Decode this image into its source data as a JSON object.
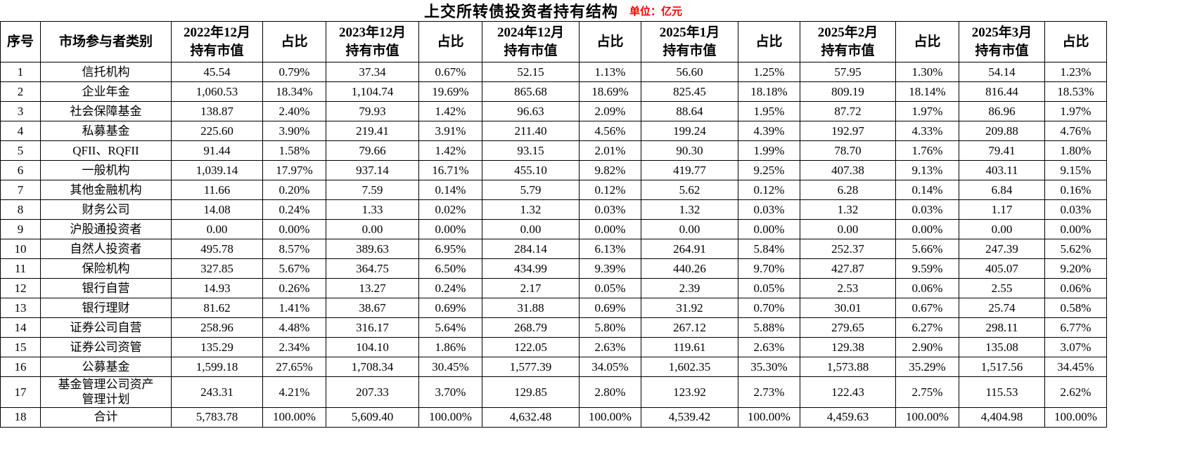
{
  "colors": {
    "background": "#ffffff",
    "title_text": "#000000",
    "unit_text": "#ff0000",
    "grid_line": "#000000",
    "cell_text": "#000000"
  },
  "chart_data": {
    "type": "table",
    "title": "上交所转债投资者持有结构",
    "unit_label": "单位：亿元",
    "columns": [
      "序号",
      "市场参与者类别",
      "2022年12月\n持有市值",
      "占比",
      "2023年12月\n持有市值",
      "占比",
      "2024年12月\n持有市值",
      "占比",
      "2025年1月\n持有市值",
      "占比",
      "2025年2月\n持有市值",
      "占比",
      "2025年3月\n持有市值",
      "占比"
    ],
    "rows": [
      [
        "1",
        "信托机构",
        "45.54",
        "0.79%",
        "37.34",
        "0.67%",
        "52.15",
        "1.13%",
        "56.60",
        "1.25%",
        "57.95",
        "1.30%",
        "54.14",
        "1.23%"
      ],
      [
        "2",
        "企业年金",
        "1,060.53",
        "18.34%",
        "1,104.74",
        "19.69%",
        "865.68",
        "18.69%",
        "825.45",
        "18.18%",
        "809.19",
        "18.14%",
        "816.44",
        "18.53%"
      ],
      [
        "3",
        "社会保障基金",
        "138.87",
        "2.40%",
        "79.93",
        "1.42%",
        "96.63",
        "2.09%",
        "88.64",
        "1.95%",
        "87.72",
        "1.97%",
        "86.96",
        "1.97%"
      ],
      [
        "4",
        "私募基金",
        "225.60",
        "3.90%",
        "219.41",
        "3.91%",
        "211.40",
        "4.56%",
        "199.24",
        "4.39%",
        "192.97",
        "4.33%",
        "209.88",
        "4.76%"
      ],
      [
        "5",
        "QFII、RQFII",
        "91.44",
        "1.58%",
        "79.66",
        "1.42%",
        "93.15",
        "2.01%",
        "90.30",
        "1.99%",
        "78.70",
        "1.76%",
        "79.41",
        "1.80%"
      ],
      [
        "6",
        "一般机构",
        "1,039.14",
        "17.97%",
        "937.14",
        "16.71%",
        "455.10",
        "9.82%",
        "419.77",
        "9.25%",
        "407.38",
        "9.13%",
        "403.11",
        "9.15%"
      ],
      [
        "7",
        "其他金融机构",
        "11.66",
        "0.20%",
        "7.59",
        "0.14%",
        "5.79",
        "0.12%",
        "5.62",
        "0.12%",
        "6.28",
        "0.14%",
        "6.84",
        "0.16%"
      ],
      [
        "8",
        "财务公司",
        "14.08",
        "0.24%",
        "1.33",
        "0.02%",
        "1.32",
        "0.03%",
        "1.32",
        "0.03%",
        "1.32",
        "0.03%",
        "1.17",
        "0.03%"
      ],
      [
        "9",
        "沪股通投资者",
        "0.00",
        "0.00%",
        "0.00",
        "0.00%",
        "0.00",
        "0.00%",
        "0.00",
        "0.00%",
        "0.00",
        "0.00%",
        "0.00",
        "0.00%"
      ],
      [
        "10",
        "自然人投资者",
        "495.78",
        "8.57%",
        "389.63",
        "6.95%",
        "284.14",
        "6.13%",
        "264.91",
        "5.84%",
        "252.37",
        "5.66%",
        "247.39",
        "5.62%"
      ],
      [
        "11",
        "保险机构",
        "327.85",
        "5.67%",
        "364.75",
        "6.50%",
        "434.99",
        "9.39%",
        "440.26",
        "9.70%",
        "427.87",
        "9.59%",
        "405.07",
        "9.20%"
      ],
      [
        "12",
        "银行自营",
        "14.93",
        "0.26%",
        "13.27",
        "0.24%",
        "2.17",
        "0.05%",
        "2.39",
        "0.05%",
        "2.53",
        "0.06%",
        "2.55",
        "0.06%"
      ],
      [
        "13",
        "银行理财",
        "81.62",
        "1.41%",
        "38.67",
        "0.69%",
        "31.88",
        "0.69%",
        "31.92",
        "0.70%",
        "30.01",
        "0.67%",
        "25.74",
        "0.58%"
      ],
      [
        "14",
        "证券公司自营",
        "258.96",
        "4.48%",
        "316.17",
        "5.64%",
        "268.79",
        "5.80%",
        "267.12",
        "5.88%",
        "279.65",
        "6.27%",
        "298.11",
        "6.77%"
      ],
      [
        "15",
        "证券公司资管",
        "135.29",
        "2.34%",
        "104.10",
        "1.86%",
        "122.05",
        "2.63%",
        "119.61",
        "2.63%",
        "129.38",
        "2.90%",
        "135.08",
        "3.07%"
      ],
      [
        "16",
        "公募基金",
        "1,599.18",
        "27.65%",
        "1,708.34",
        "30.45%",
        "1,577.39",
        "34.05%",
        "1,602.35",
        "35.30%",
        "1,573.88",
        "35.29%",
        "1,517.56",
        "34.45%"
      ],
      [
        "17",
        "基金管理公司资产\n管理计划",
        "243.31",
        "4.21%",
        "207.33",
        "3.70%",
        "129.85",
        "2.80%",
        "123.92",
        "2.73%",
        "122.43",
        "2.75%",
        "115.53",
        "2.62%"
      ],
      [
        "18",
        "合计",
        "5,783.78",
        "100.00%",
        "5,609.40",
        "100.00%",
        "4,632.48",
        "100.00%",
        "4,539.42",
        "100.00%",
        "4,459.63",
        "100.00%",
        "4,404.98",
        "100.00%"
      ]
    ]
  }
}
